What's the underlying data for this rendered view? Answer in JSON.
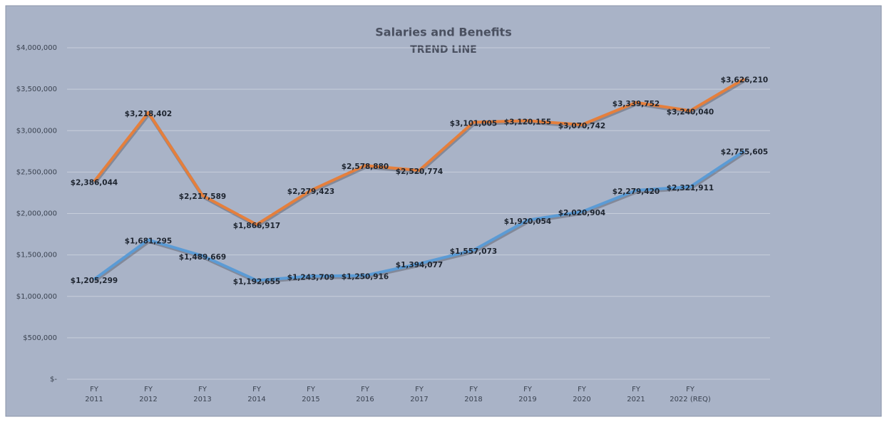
{
  "chart_data": {
    "type": "line",
    "title": "Salaries and Benefits",
    "subtitle": "TREND LINE",
    "categories": [
      "FY 2011",
      "FY 2012",
      "FY 2013",
      "FY 2014",
      "FY 2015",
      "FY 2016",
      "FY 2017",
      "FY 2018",
      "FY 2019",
      "FY 2020",
      "FY 2021",
      "FY 2022 (REQ)",
      null
    ],
    "series": [
      {
        "color": "#e57f3c",
        "values": [
          2386044,
          3218402,
          2217589,
          1866917,
          2279423,
          2578880,
          2520774,
          3101005,
          3120155,
          3070742,
          3339752,
          3240040,
          3626210
        ],
        "value_labels": [
          "$2,386,044",
          "$3,218,402",
          "$2,217,589",
          "$1,866,917",
          "$2,279,423",
          "$2,578,880",
          "$2,520,774",
          "$3,101,005",
          "$3,120,155",
          "$3,070,742",
          "$3,339,752",
          "$3,240,040",
          "$3,626,210"
        ]
      },
      {
        "color": "#5b9bd5",
        "values": [
          1205299,
          1681295,
          1489669,
          1192655,
          1243709,
          1250916,
          1394077,
          1557073,
          1920054,
          2020904,
          2279420,
          2321911,
          2755605
        ],
        "value_labels": [
          "$1,205,299",
          "$1,681,295",
          "$1,489,669",
          "$1,192,655",
          "$1,243,709",
          "$1,250,916",
          "$1,394,077",
          "$1,557,073",
          "$1,920,054",
          "$2,020,904",
          "$2,279,420",
          "$2,321,911",
          "$2,755,605"
        ]
      }
    ],
    "ylim": [
      0,
      4000000
    ],
    "yticks": [
      {
        "value": 0,
        "label": "$-"
      },
      {
        "value": 500000,
        "label": "$500,000"
      },
      {
        "value": 1000000,
        "label": "$1,000,000"
      },
      {
        "value": 1500000,
        "label": "$1,500,000"
      },
      {
        "value": 2000000,
        "label": "$2,000,000"
      },
      {
        "value": 2500000,
        "label": "$2,500,000"
      },
      {
        "value": 3000000,
        "label": "$3,000,000"
      },
      {
        "value": 3500000,
        "label": "$3,500,000"
      },
      {
        "value": 4000000,
        "label": "$4,000,000"
      }
    ],
    "grid": true
  }
}
